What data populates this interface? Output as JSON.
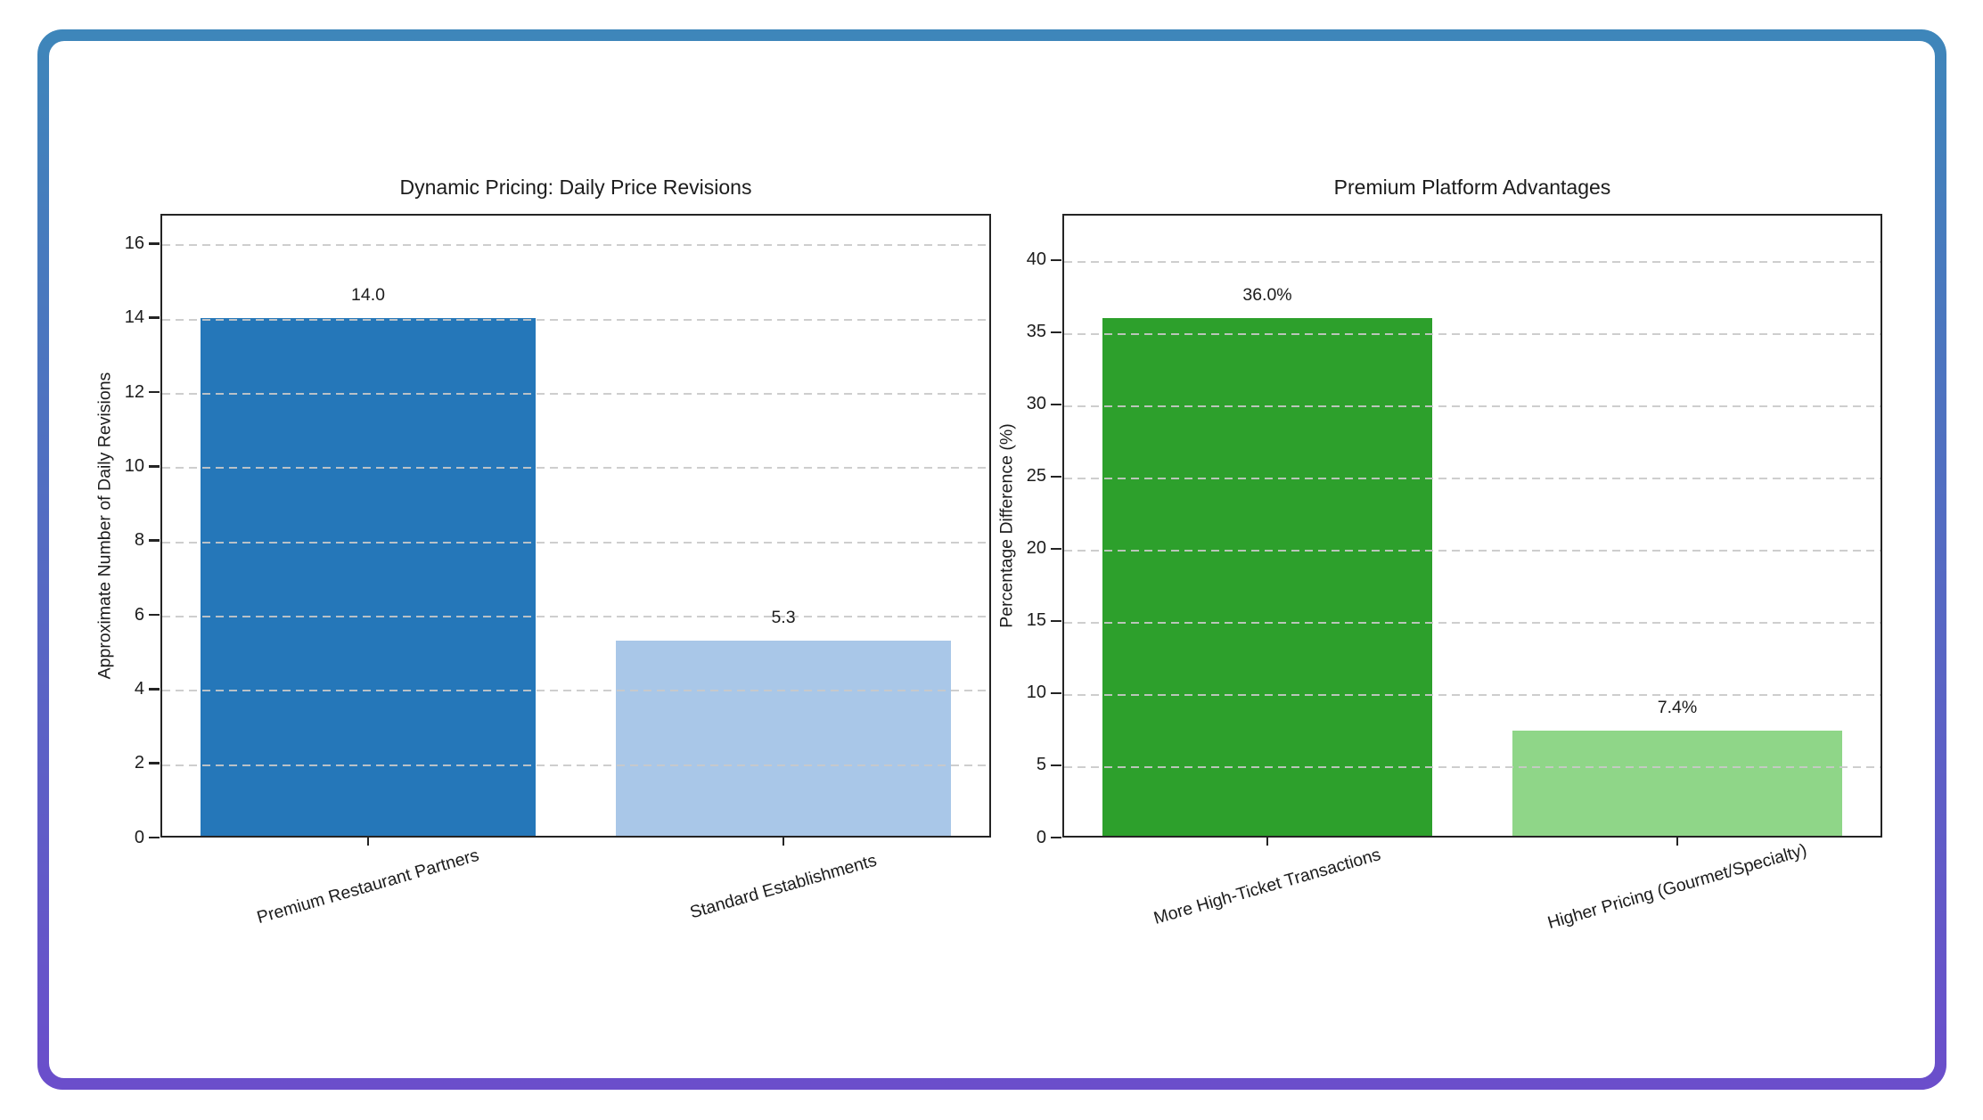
{
  "card": {
    "background": "#ffffff",
    "border_gradient_top": "#3e86ba",
    "border_gradient_bottom": "#6b4ecb"
  },
  "colors": {
    "text": "#1c1c1c",
    "axis": "#242424",
    "gridline": "#c9c9c9"
  },
  "chart_data": [
    {
      "type": "bar",
      "title": "Dynamic Pricing: Daily Price Revisions",
      "ylabel": "Approximate Number of Daily Revisions",
      "xlabel": "",
      "categories": [
        "Premium Restaurant Partners",
        "Standard Establishments"
      ],
      "values": [
        14.0,
        5.3
      ],
      "value_labels": [
        "14.0",
        "5.3"
      ],
      "bar_colors": [
        "#2577b9",
        "#a9c7e8"
      ],
      "yticks": [
        0,
        2,
        4,
        6,
        8,
        10,
        12,
        14,
        16
      ],
      "ylim": [
        0,
        16.8
      ],
      "grid": "horizontal-dashed",
      "legend_position": "none"
    },
    {
      "type": "bar",
      "title": "Premium Platform Advantages",
      "ylabel": "Percentage Difference (%)",
      "xlabel": "",
      "categories": [
        "More High-Ticket Transactions",
        "Higher Pricing (Gourmet/Specialty)"
      ],
      "values": [
        36.0,
        7.4
      ],
      "value_labels": [
        "36.0%",
        "7.4%"
      ],
      "bar_colors": [
        "#2da02c",
        "#8fd688"
      ],
      "yticks": [
        0,
        5,
        10,
        15,
        20,
        25,
        30,
        35,
        40
      ],
      "ylim": [
        0,
        43.2
      ],
      "grid": "horizontal-dashed",
      "legend_position": "none"
    }
  ]
}
